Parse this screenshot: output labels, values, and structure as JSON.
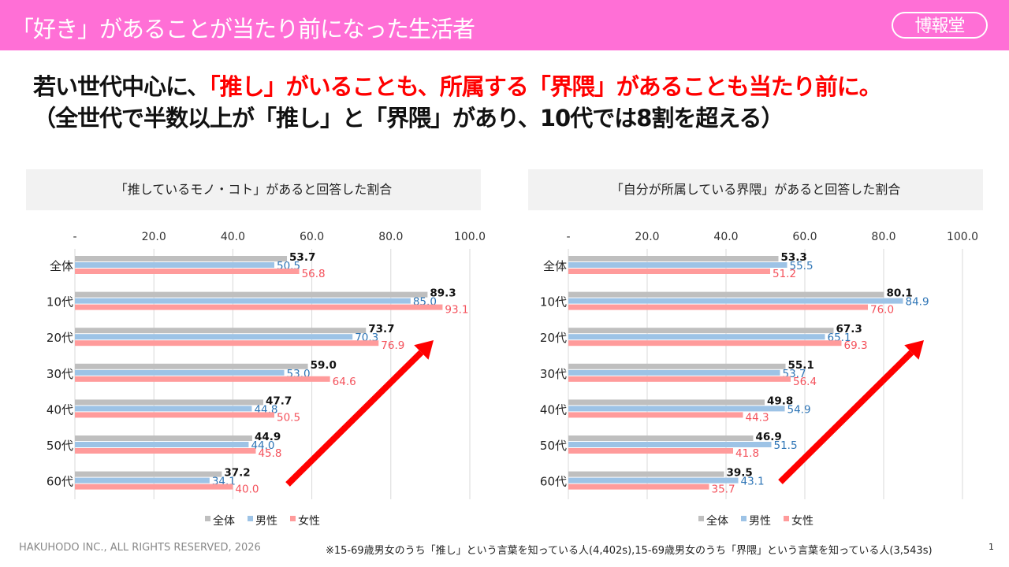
{
  "header": {
    "title": "「好き」があることが当たり前になった生活者",
    "logo": "博報堂"
  },
  "headline": {
    "line1_a": "若い世代中心に、",
    "line1_b": "「推し」がいることも、所属する「界隈」があることも当たり前に。",
    "line2": "（全世代で半数以上が「推し」と「界隈」があり、10代では8割を超える）"
  },
  "colors": {
    "all": "#bfbfbf",
    "male": "#9dc3e6",
    "female": "#ff9b9b",
    "male_label": "#2e75b6",
    "female_label": "#f4515b",
    "accent": "#ff0000"
  },
  "chart_data": [
    {
      "type": "bar",
      "orientation": "horizontal",
      "title": "「推しているモノ・コト」があると回答した割合",
      "categories": [
        "全体",
        "10代",
        "20代",
        "30代",
        "40代",
        "50代",
        "60代"
      ],
      "xticks": [
        "-",
        "20.0",
        "40.0",
        "60.0",
        "80.0",
        "100.0"
      ],
      "xlim": [
        0,
        100
      ],
      "grid": true,
      "legend": "bottom",
      "series": [
        {
          "name": "全体",
          "values": [
            53.7,
            89.3,
            73.7,
            59.0,
            47.7,
            44.9,
            37.2
          ]
        },
        {
          "name": "男性",
          "values": [
            50.5,
            85.0,
            70.3,
            53.0,
            44.8,
            44.0,
            34.1
          ]
        },
        {
          "name": "女性",
          "values": [
            56.8,
            93.1,
            76.9,
            64.6,
            50.5,
            45.8,
            40.0
          ]
        }
      ]
    },
    {
      "type": "bar",
      "orientation": "horizontal",
      "title": "「自分が所属している界隈」があると回答した割合",
      "categories": [
        "全体",
        "10代",
        "20代",
        "30代",
        "40代",
        "50代",
        "60代"
      ],
      "xticks": [
        "-",
        "20.0",
        "40.0",
        "60.0",
        "80.0",
        "100.0"
      ],
      "xlim": [
        0,
        100
      ],
      "grid": true,
      "legend": "bottom",
      "series": [
        {
          "name": "全体",
          "values": [
            53.3,
            80.1,
            67.3,
            55.1,
            49.8,
            46.9,
            39.5
          ]
        },
        {
          "name": "男性",
          "values": [
            55.5,
            84.9,
            65.1,
            53.7,
            54.9,
            51.5,
            43.1
          ]
        },
        {
          "name": "女性",
          "values": [
            51.2,
            76.0,
            69.3,
            56.4,
            44.3,
            41.8,
            35.7
          ]
        }
      ]
    }
  ],
  "footer": {
    "copyright": "HAKUHODO INC., ALL RIGHTS RESERVED, 2026",
    "note": "※15-69歳男女のうち「推し」という言葉を知っている人(4,402s),15-69歳男女のうち「界隈」という言葉を知っている人(3,543s)",
    "page": "1"
  }
}
